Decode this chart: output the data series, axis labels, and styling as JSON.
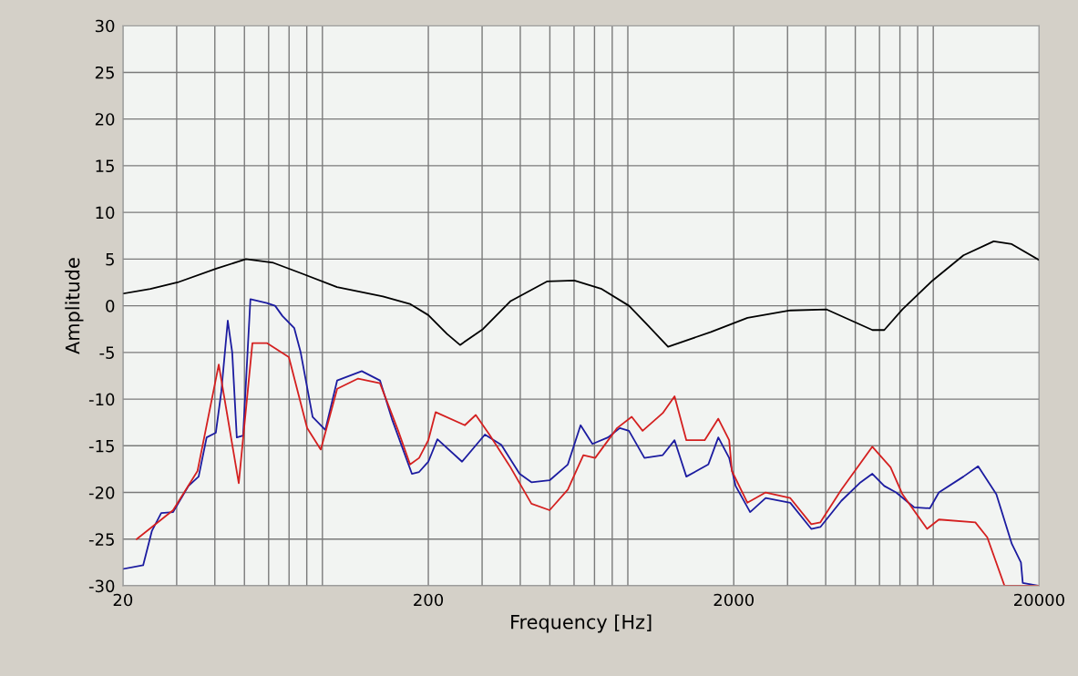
{
  "chart_data": {
    "type": "line",
    "xlabel": "Frequency [Hz]",
    "ylabel": "Amplitude",
    "log": "x",
    "grid": true,
    "line_style": "solid",
    "marker": "none",
    "xlim": [
      20,
      20000
    ],
    "xticks": [
      20,
      200,
      2000,
      20000
    ],
    "ylim": [
      -30,
      30
    ],
    "yticks": [
      -30,
      -25,
      -20,
      -15,
      -10,
      -5,
      0,
      5,
      10,
      15,
      20,
      25,
      30
    ],
    "series": [
      {
        "color": "#000000",
        "x": [
          20,
          24.6,
          30.2,
          40.6,
          50.6,
          62.2,
          76.4,
          100.5,
          142,
          174,
          200,
          230,
          254,
          302,
          372,
          489,
          601,
          739,
          908,
          1040,
          1219,
          1684,
          2218,
          3063,
          4031,
          5690,
          6220,
          7130,
          8950,
          11300,
          14190,
          16260,
          20000
        ],
        "values": [
          1.3,
          1.8,
          2.5,
          4.0,
          5.0,
          4.6,
          3.5,
          2.0,
          1.0,
          0.2,
          -1.0,
          -3.0,
          -4.2,
          -2.5,
          0.5,
          2.6,
          2.7,
          1.8,
          0.0,
          -2.0,
          -4.4,
          -2.8,
          -1.3,
          -0.5,
          -0.4,
          -2.6,
          -2.6,
          -0.4,
          2.7,
          5.4,
          6.9,
          6.6,
          4.9
        ]
      },
      {
        "color": "#1c1ca0",
        "x": [
          20,
          23.3,
          24.9,
          26.7,
          29.2,
          32.8,
          35.4,
          37.6,
          40.3,
          42.0,
          44.1,
          45.6,
          47.2,
          49.5,
          52.3,
          59.2,
          63.0,
          66.6,
          72.8,
          76.4,
          83.6,
          92.0,
          100.6,
          121.1,
          138.9,
          151.9,
          176.7,
          186.6,
          200,
          214.2,
          257.9,
          306.4,
          346.7,
          397.9,
          435.1,
          499,
          572.5,
          630.3,
          689.2,
          774.8,
          847.3,
          907.6,
          1020,
          1171,
          1280,
          1399,
          1651,
          1780,
          1932,
          2028,
          2263,
          2544,
          3063,
          3588,
          3843,
          4500,
          5164,
          5686,
          6218,
          6800,
          7800,
          8770,
          9390,
          11300,
          12620,
          14480,
          16270,
          17430,
          17670,
          20000
        ],
        "values": [
          -28.2,
          -27.8,
          -24.1,
          -22.2,
          -22.1,
          -19.3,
          -18.3,
          -14.1,
          -13.6,
          -9.2,
          -1.6,
          -5.0,
          -14.1,
          -13.9,
          0.7,
          0.3,
          0.0,
          -1.1,
          -2.4,
          -5.0,
          -11.9,
          -13.3,
          -8.0,
          -7.0,
          -8.0,
          -12.1,
          -18.0,
          -17.8,
          -16.7,
          -14.3,
          -16.7,
          -13.8,
          -14.9,
          -18.0,
          -18.9,
          -18.7,
          -17.0,
          -12.8,
          -14.8,
          -14.1,
          -13.1,
          -13.4,
          -16.3,
          -16.0,
          -14.4,
          -18.3,
          -17.0,
          -14.1,
          -16.3,
          -19.3,
          -22.1,
          -20.6,
          -21.1,
          -23.9,
          -23.7,
          -20.9,
          -19.0,
          -18.0,
          -19.3,
          -20.0,
          -21.6,
          -21.7,
          -20.0,
          -18.3,
          -17.2,
          -20.2,
          -25.5,
          -27.5,
          -29.7,
          -30
        ]
      },
      {
        "color": "#d42020",
        "x": [
          22.2,
          29.2,
          35.1,
          41.2,
          47.9,
          53.1,
          59.2,
          69.9,
          80.2,
          88.9,
          100.6,
          117.8,
          138.9,
          159.4,
          174.3,
          186.6,
          200,
          211.3,
          263.3,
          286,
          317,
          371.5,
          435.1,
          499,
          572.5,
          643.5,
          703.6,
          829.9,
          926.7,
          1006,
          1171,
          1280,
          1399,
          1606,
          1780,
          1932,
          1972,
          2217,
          2544,
          3063,
          3588,
          3843,
          4500,
          5686,
          6522,
          7134,
          8590,
          9390,
          12360,
          13520,
          15400,
          20000
        ],
        "values": [
          -25.0,
          -21.9,
          -17.7,
          -6.3,
          -19.0,
          -4.0,
          -4.0,
          -5.5,
          -13.1,
          -15.4,
          -8.9,
          -7.8,
          -8.3,
          -13.4,
          -17.0,
          -16.3,
          -14.4,
          -11.4,
          -12.8,
          -11.7,
          -13.8,
          -17.3,
          -21.2,
          -21.9,
          -19.7,
          -16.0,
          -16.3,
          -13.1,
          -11.9,
          -13.4,
          -11.5,
          -9.7,
          -14.4,
          -14.4,
          -12.1,
          -14.4,
          -17.7,
          -21.1,
          -20.0,
          -20.6,
          -23.4,
          -23.2,
          -19.7,
          -15.1,
          -17.3,
          -20.2,
          -23.9,
          -22.9,
          -23.2,
          -24.8,
          -30,
          -30
        ]
      }
    ]
  }
}
